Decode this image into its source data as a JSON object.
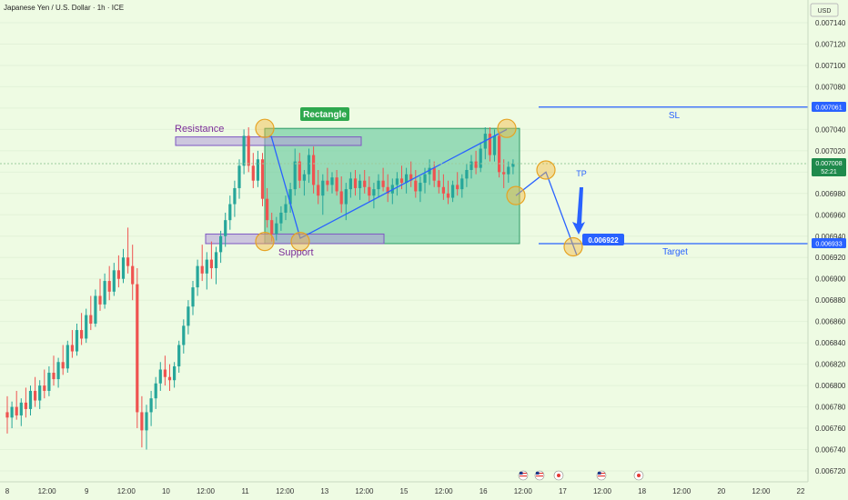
{
  "header": {
    "title": "Japanese Yen / U.S. Dollar · 1h · ICE"
  },
  "axis": {
    "currency": "USD",
    "price_ticks": [
      "0.007140",
      "0.007120",
      "0.007100",
      "0.007080",
      "0.007060",
      "0.007040",
      "0.007020",
      "0.007000",
      "0.006980",
      "0.006960",
      "0.006940",
      "0.006920",
      "0.006900",
      "0.006880",
      "0.006860",
      "0.006840",
      "0.006820",
      "0.006800",
      "0.006780",
      "0.006760",
      "0.006740",
      "0.006720"
    ],
    "time_ticks": [
      "8",
      "12:00",
      "9",
      "12:00",
      "10",
      "12:00",
      "11",
      "12:00",
      "13",
      "12:00",
      "15",
      "12:00",
      "16",
      "12:00",
      "17",
      "12:00",
      "18",
      "12:00",
      "20",
      "12:00",
      "22"
    ]
  },
  "labels": {
    "resistance": "Resistance",
    "support": "Support",
    "rectangle": "Rectangle",
    "sl": "SL",
    "tp": "TP",
    "target": "Target",
    "target_price": "0.006922"
  },
  "price_tags": {
    "sl": "0.007061",
    "target": "0.006933",
    "current": "0.007008",
    "countdown": "52:21"
  },
  "colors": {
    "up": "#26a69a",
    "down": "#ef5350",
    "background": "#eefbe3",
    "line": "#2962ff",
    "rect_fill": "#5fc79a",
    "zone_fill": "#b39ddb",
    "zone_stroke": "#7e57c2",
    "circle": "#f5b940",
    "rect_label_bg": "#2ea84e"
  },
  "chart_data": {
    "type": "candlestick",
    "title": "Japanese Yen / U.S. Dollar · 1h · ICE",
    "y_range": [
      0.006715,
      0.00715
    ],
    "levels": {
      "stop_loss": 0.007061,
      "target": 0.006933,
      "tp_marker": 0.006922,
      "current": 0.007008
    },
    "rectangle": {
      "top": 0.007041,
      "bottom": 0.006933
    },
    "resistance_zone": {
      "top": 0.007033,
      "bottom": 0.007025
    },
    "support_zone": {
      "top": 0.006942,
      "bottom": 0.006933
    },
    "candles": [
      {
        "o": 0.006775,
        "h": 0.00679,
        "l": 0.006755,
        "c": 0.00677
      },
      {
        "o": 0.00677,
        "h": 0.006785,
        "l": 0.00676,
        "c": 0.00678
      },
      {
        "o": 0.00678,
        "h": 0.006795,
        "l": 0.006768,
        "c": 0.006772
      },
      {
        "o": 0.006772,
        "h": 0.006788,
        "l": 0.006762,
        "c": 0.006784
      },
      {
        "o": 0.006784,
        "h": 0.006798,
        "l": 0.00677,
        "c": 0.006778
      },
      {
        "o": 0.006778,
        "h": 0.0068,
        "l": 0.006772,
        "c": 0.006795
      },
      {
        "o": 0.006795,
        "h": 0.006808,
        "l": 0.00678,
        "c": 0.006786
      },
      {
        "o": 0.006786,
        "h": 0.006805,
        "l": 0.006778,
        "c": 0.0068
      },
      {
        "o": 0.0068,
        "h": 0.006815,
        "l": 0.006788,
        "c": 0.006795
      },
      {
        "o": 0.006795,
        "h": 0.006818,
        "l": 0.00679,
        "c": 0.006812
      },
      {
        "o": 0.006812,
        "h": 0.006828,
        "l": 0.0068,
        "c": 0.006806
      },
      {
        "o": 0.006806,
        "h": 0.006826,
        "l": 0.006798,
        "c": 0.006822
      },
      {
        "o": 0.006822,
        "h": 0.006838,
        "l": 0.00681,
        "c": 0.006816
      },
      {
        "o": 0.006816,
        "h": 0.006842,
        "l": 0.006812,
        "c": 0.006838
      },
      {
        "o": 0.006838,
        "h": 0.006852,
        "l": 0.006826,
        "c": 0.006832
      },
      {
        "o": 0.006832,
        "h": 0.006858,
        "l": 0.006828,
        "c": 0.006852
      },
      {
        "o": 0.006852,
        "h": 0.006868,
        "l": 0.006838,
        "c": 0.006844
      },
      {
        "o": 0.006844,
        "h": 0.006872,
        "l": 0.00684,
        "c": 0.006866
      },
      {
        "o": 0.006866,
        "h": 0.006884,
        "l": 0.006852,
        "c": 0.006858
      },
      {
        "o": 0.006858,
        "h": 0.00689,
        "l": 0.006855,
        "c": 0.006884
      },
      {
        "o": 0.006884,
        "h": 0.0069,
        "l": 0.00687,
        "c": 0.006876
      },
      {
        "o": 0.006876,
        "h": 0.006905,
        "l": 0.006872,
        "c": 0.006898
      },
      {
        "o": 0.006898,
        "h": 0.006912,
        "l": 0.00688,
        "c": 0.006888
      },
      {
        "o": 0.006888,
        "h": 0.006915,
        "l": 0.006884,
        "c": 0.006908
      },
      {
        "o": 0.006908,
        "h": 0.006922,
        "l": 0.006892,
        "c": 0.0069
      },
      {
        "o": 0.0069,
        "h": 0.006928,
        "l": 0.006896,
        "c": 0.00692
      },
      {
        "o": 0.00692,
        "h": 0.006948,
        "l": 0.006905,
        "c": 0.006912
      },
      {
        "o": 0.006912,
        "h": 0.006932,
        "l": 0.00688,
        "c": 0.006895
      },
      {
        "o": 0.006895,
        "h": 0.00691,
        "l": 0.00676,
        "c": 0.006775
      },
      {
        "o": 0.006775,
        "h": 0.00679,
        "l": 0.006742,
        "c": 0.006758
      },
      {
        "o": 0.006758,
        "h": 0.006782,
        "l": 0.00674,
        "c": 0.006775
      },
      {
        "o": 0.006775,
        "h": 0.006795,
        "l": 0.006762,
        "c": 0.006788
      },
      {
        "o": 0.006788,
        "h": 0.006808,
        "l": 0.006778,
        "c": 0.006802
      },
      {
        "o": 0.006802,
        "h": 0.006822,
        "l": 0.006795,
        "c": 0.006815
      },
      {
        "o": 0.006815,
        "h": 0.006828,
        "l": 0.0068,
        "c": 0.006808
      },
      {
        "o": 0.006808,
        "h": 0.00682,
        "l": 0.006795,
        "c": 0.006805
      },
      {
        "o": 0.006805,
        "h": 0.006822,
        "l": 0.006798,
        "c": 0.006818
      },
      {
        "o": 0.006818,
        "h": 0.006842,
        "l": 0.006812,
        "c": 0.006838
      },
      {
        "o": 0.006838,
        "h": 0.006862,
        "l": 0.00683,
        "c": 0.006856
      },
      {
        "o": 0.006856,
        "h": 0.00688,
        "l": 0.006848,
        "c": 0.006874
      },
      {
        "o": 0.006874,
        "h": 0.006898,
        "l": 0.006866,
        "c": 0.006892
      },
      {
        "o": 0.006892,
        "h": 0.006918,
        "l": 0.006884,
        "c": 0.006912
      },
      {
        "o": 0.006912,
        "h": 0.006932,
        "l": 0.006898,
        "c": 0.006905
      },
      {
        "o": 0.006905,
        "h": 0.006925,
        "l": 0.00689,
        "c": 0.006918
      },
      {
        "o": 0.006918,
        "h": 0.006935,
        "l": 0.0069,
        "c": 0.00691
      },
      {
        "o": 0.00691,
        "h": 0.00693,
        "l": 0.006895,
        "c": 0.006925
      },
      {
        "o": 0.006925,
        "h": 0.006945,
        "l": 0.006915,
        "c": 0.00694
      },
      {
        "o": 0.00694,
        "h": 0.006962,
        "l": 0.00693,
        "c": 0.006955
      },
      {
        "o": 0.006955,
        "h": 0.006978,
        "l": 0.006946,
        "c": 0.00697
      },
      {
        "o": 0.00697,
        "h": 0.006992,
        "l": 0.006958,
        "c": 0.006985
      },
      {
        "o": 0.006985,
        "h": 0.007012,
        "l": 0.006975,
        "c": 0.007006
      },
      {
        "o": 0.007006,
        "h": 0.00704,
        "l": 0.006998,
        "c": 0.007034
      },
      {
        "o": 0.007034,
        "h": 0.007042,
        "l": 0.007,
        "c": 0.007006
      },
      {
        "o": 0.007006,
        "h": 0.007018,
        "l": 0.006985,
        "c": 0.006992
      },
      {
        "o": 0.006992,
        "h": 0.00702,
        "l": 0.006986,
        "c": 0.007012
      },
      {
        "o": 0.007012,
        "h": 0.007018,
        "l": 0.006968,
        "c": 0.006975
      },
      {
        "o": 0.006975,
        "h": 0.006985,
        "l": 0.006948,
        "c": 0.006955
      },
      {
        "o": 0.006955,
        "h": 0.006962,
        "l": 0.006935,
        "c": 0.006942
      },
      {
        "o": 0.006942,
        "h": 0.006958,
        "l": 0.006936,
        "c": 0.006952
      },
      {
        "o": 0.006952,
        "h": 0.006968,
        "l": 0.006945,
        "c": 0.006962
      },
      {
        "o": 0.006962,
        "h": 0.006978,
        "l": 0.006955,
        "c": 0.00697
      },
      {
        "o": 0.00697,
        "h": 0.00699,
        "l": 0.006962,
        "c": 0.006984
      },
      {
        "o": 0.006984,
        "h": 0.007022,
        "l": 0.006978,
        "c": 0.00701
      },
      {
        "o": 0.00701,
        "h": 0.007018,
        "l": 0.006985,
        "c": 0.006992
      },
      {
        "o": 0.006992,
        "h": 0.007002,
        "l": 0.006978,
        "c": 0.006998
      },
      {
        "o": 0.006998,
        "h": 0.007022,
        "l": 0.00699,
        "c": 0.007016
      },
      {
        "o": 0.007016,
        "h": 0.007024,
        "l": 0.00698,
        "c": 0.006988
      },
      {
        "o": 0.006988,
        "h": 0.007002,
        "l": 0.00697,
        "c": 0.006978
      },
      {
        "o": 0.006978,
        "h": 0.006998,
        "l": 0.00696,
        "c": 0.006992
      },
      {
        "o": 0.006992,
        "h": 0.007004,
        "l": 0.006982,
        "c": 0.006988
      },
      {
        "o": 0.006988,
        "h": 0.007,
        "l": 0.00698,
        "c": 0.006995
      },
      {
        "o": 0.006995,
        "h": 0.007002,
        "l": 0.006978,
        "c": 0.006982
      },
      {
        "o": 0.006982,
        "h": 0.006996,
        "l": 0.006962,
        "c": 0.00697
      },
      {
        "o": 0.00697,
        "h": 0.00699,
        "l": 0.006955,
        "c": 0.006984
      },
      {
        "o": 0.006984,
        "h": 0.007,
        "l": 0.006976,
        "c": 0.006994
      },
      {
        "o": 0.006994,
        "h": 0.007002,
        "l": 0.006978,
        "c": 0.006985
      },
      {
        "o": 0.006985,
        "h": 0.006998,
        "l": 0.006974,
        "c": 0.006992
      },
      {
        "o": 0.006992,
        "h": 0.007002,
        "l": 0.00698,
        "c": 0.006986
      },
      {
        "o": 0.006986,
        "h": 0.006996,
        "l": 0.006972,
        "c": 0.006978
      },
      {
        "o": 0.006978,
        "h": 0.00699,
        "l": 0.006966,
        "c": 0.006984
      },
      {
        "o": 0.006984,
        "h": 0.006998,
        "l": 0.006976,
        "c": 0.006992
      },
      {
        "o": 0.006992,
        "h": 0.007004,
        "l": 0.006982,
        "c": 0.006986
      },
      {
        "o": 0.006986,
        "h": 0.006998,
        "l": 0.006972,
        "c": 0.00698
      },
      {
        "o": 0.00698,
        "h": 0.006994,
        "l": 0.00697,
        "c": 0.006988
      },
      {
        "o": 0.006988,
        "h": 0.007,
        "l": 0.006978,
        "c": 0.006994
      },
      {
        "o": 0.006994,
        "h": 0.007006,
        "l": 0.006984,
        "c": 0.00699
      },
      {
        "o": 0.00699,
        "h": 0.007004,
        "l": 0.00698,
        "c": 0.006998
      },
      {
        "o": 0.006998,
        "h": 0.00701,
        "l": 0.006986,
        "c": 0.006992
      },
      {
        "o": 0.006992,
        "h": 0.007002,
        "l": 0.006976,
        "c": 0.006982
      },
      {
        "o": 0.006982,
        "h": 0.006996,
        "l": 0.006972,
        "c": 0.00699
      },
      {
        "o": 0.00699,
        "h": 0.007004,
        "l": 0.00698,
        "c": 0.006998
      },
      {
        "o": 0.006998,
        "h": 0.007012,
        "l": 0.006988,
        "c": 0.007004
      },
      {
        "o": 0.007004,
        "h": 0.00701,
        "l": 0.006986,
        "c": 0.006992
      },
      {
        "o": 0.006992,
        "h": 0.007002,
        "l": 0.00698,
        "c": 0.006986
      },
      {
        "o": 0.006986,
        "h": 0.006998,
        "l": 0.006974,
        "c": 0.00698
      },
      {
        "o": 0.00698,
        "h": 0.006992,
        "l": 0.00697,
        "c": 0.006976
      },
      {
        "o": 0.006976,
        "h": 0.006992,
        "l": 0.006972,
        "c": 0.006988
      },
      {
        "o": 0.006988,
        "h": 0.007,
        "l": 0.006978,
        "c": 0.006984
      },
      {
        "o": 0.006984,
        "h": 0.006998,
        "l": 0.006976,
        "c": 0.006994
      },
      {
        "o": 0.006994,
        "h": 0.007008,
        "l": 0.006986,
        "c": 0.007002
      },
      {
        "o": 0.007002,
        "h": 0.007016,
        "l": 0.006994,
        "c": 0.00701
      },
      {
        "o": 0.00701,
        "h": 0.00702,
        "l": 0.006998,
        "c": 0.007004
      },
      {
        "o": 0.007004,
        "h": 0.007028,
        "l": 0.007,
        "c": 0.007022
      },
      {
        "o": 0.007022,
        "h": 0.007042,
        "l": 0.007012,
        "c": 0.007036
      },
      {
        "o": 0.007036,
        "h": 0.007042,
        "l": 0.00701,
        "c": 0.007016
      },
      {
        "o": 0.007016,
        "h": 0.00704,
        "l": 0.00701,
        "c": 0.007034
      },
      {
        "o": 0.007034,
        "h": 0.007038,
        "l": 0.006995,
        "c": 0.007
      },
      {
        "o": 0.007,
        "h": 0.007012,
        "l": 0.006985,
        "c": 0.006998
      },
      {
        "o": 0.006998,
        "h": 0.00701,
        "l": 0.00699,
        "c": 0.007005
      },
      {
        "o": 0.007005,
        "h": 0.007012,
        "l": 0.006998,
        "c": 0.007008
      }
    ]
  }
}
